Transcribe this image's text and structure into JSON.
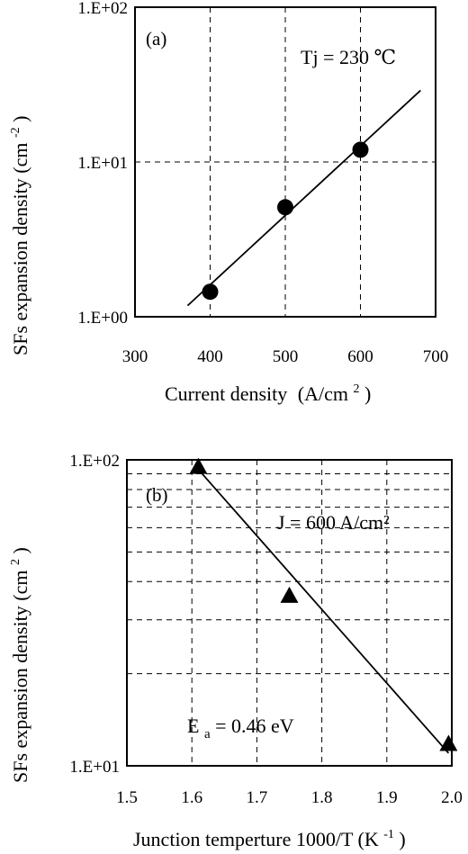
{
  "chart_data": [
    {
      "type": "scatter",
      "panel_label": "(a)",
      "xlabel": "Current density",
      "xlabel_unit": "(A/cm",
      "xlabel_unit_sup": "2",
      "xlabel_unit_close": ")",
      "ylabel": "SFs expansion density (cm",
      "ylabel_sup": "-2",
      "ylabel_close": ")",
      "annotation": "Tj = 230 ℃",
      "xlim": [
        300,
        700
      ],
      "ylim": [
        1,
        100
      ],
      "yscale": "log",
      "grid": "dashed",
      "x_ticks": [
        "300",
        "400",
        "500",
        "600",
        "700"
      ],
      "y_ticks": [
        "1.E+00",
        "1.E+01",
        "1.E+02"
      ],
      "points": {
        "x": [
          400,
          500,
          600
        ],
        "y": [
          1.45,
          5.1,
          12.0
        ]
      },
      "fit_line": {
        "x": [
          370,
          680
        ],
        "y": [
          1.18,
          29.0
        ]
      }
    },
    {
      "type": "scatter",
      "panel_label": "(b)",
      "xlabel": "Junction temperture 1000/T (K",
      "xlabel_sup": "-1",
      "xlabel_close": ")",
      "ylabel": "SFs expansion density (cm",
      "ylabel_sup": "2",
      "ylabel_close": ")",
      "annotation": "J = 600 A/cm²",
      "annotation2_main": "E",
      "annotation2_sub": "a",
      "annotation2_rest": " = 0.46 eV",
      "xlim": [
        1.5,
        2.0
      ],
      "ylim": [
        10,
        100
      ],
      "yscale": "log",
      "grid": "dashed",
      "x_ticks": [
        "1.5",
        "1.6",
        "1.7",
        "1.8",
        "1.9",
        "2.0"
      ],
      "y_ticks": [
        "1.E+01",
        "1.E+02"
      ],
      "points": {
        "x": [
          1.61,
          1.75,
          1.995
        ],
        "y": [
          95.0,
          36.0,
          11.8
        ]
      },
      "fit_line": {
        "x": [
          1.61,
          1.995
        ],
        "y": [
          93.0,
          11.0
        ]
      }
    }
  ]
}
